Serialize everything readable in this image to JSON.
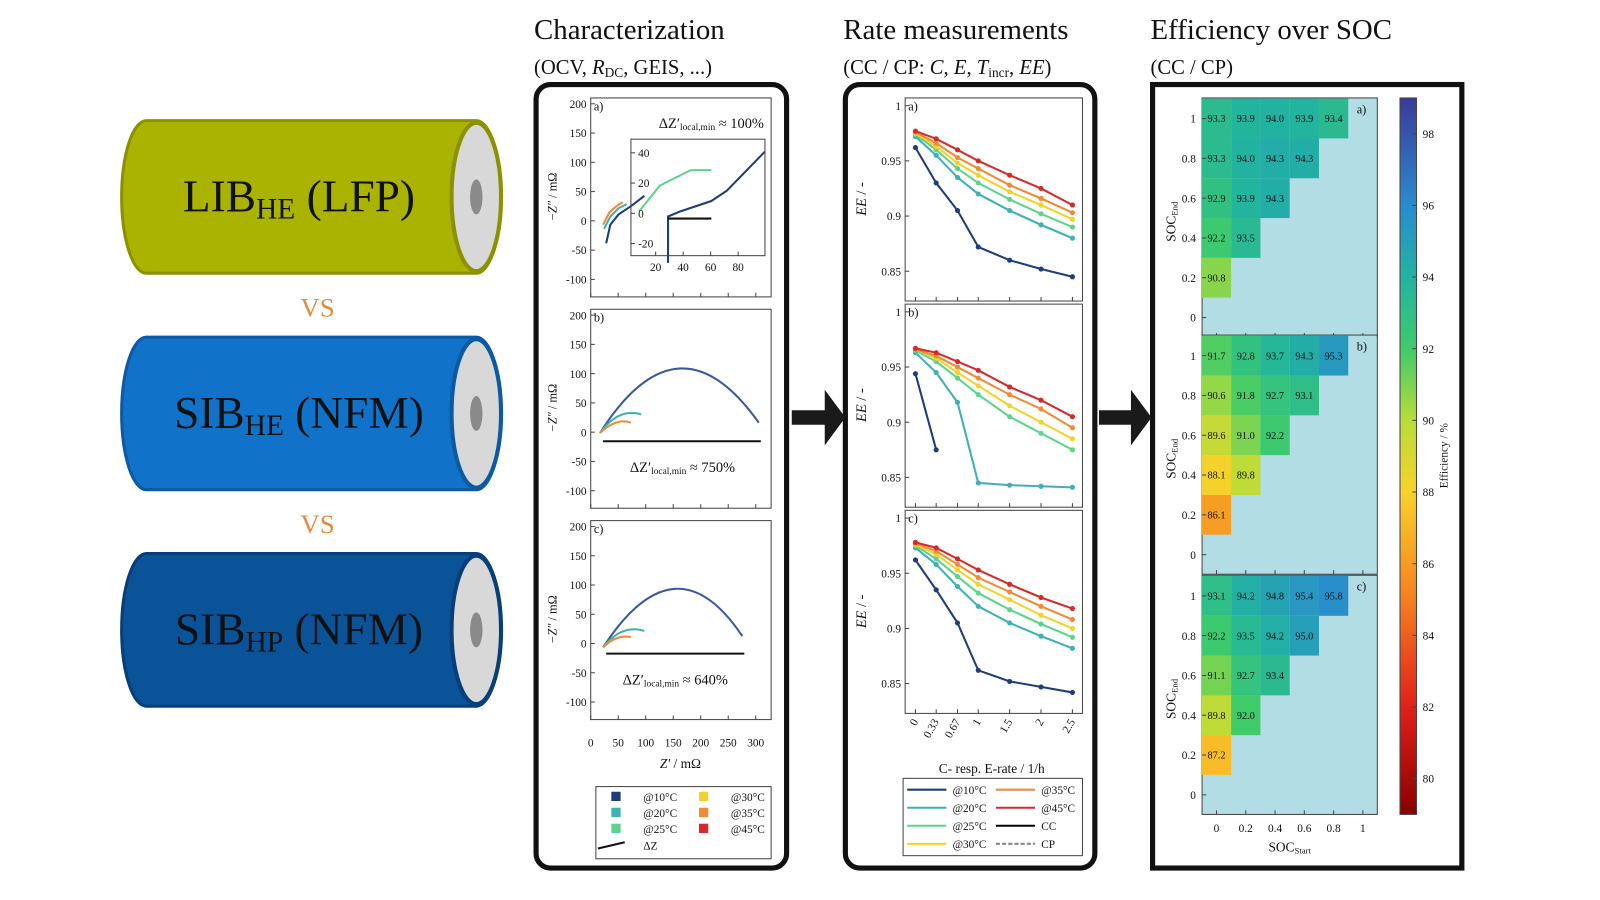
{
  "cells": [
    {
      "color": "#a9b300",
      "edge": "#8a9200",
      "label": [
        {
          "t": "LIB"
        },
        {
          "t": "HE",
          "sub": true
        },
        {
          "t": " (LFP)"
        }
      ]
    },
    {
      "color": "#1172c9",
      "edge": "#0b5aa3",
      "label": [
        {
          "t": "SIB"
        },
        {
          "t": "HE",
          "sub": true
        },
        {
          "t": " (NFM)"
        }
      ]
    },
    {
      "color": "#0b5399",
      "edge": "#083f78",
      "label": [
        {
          "t": "SIB"
        },
        {
          "t": "HP",
          "sub": true
        },
        {
          "t": " (NFM)"
        }
      ]
    }
  ],
  "vs": [
    "VS",
    "VS"
  ],
  "characterization": {
    "title": "Characterization",
    "subtitle": [
      {
        "t": "(OCV, "
      },
      {
        "t": "R",
        "i": true
      },
      {
        "t": "DC",
        "sub": true
      },
      {
        "t": ", GEIS, ...)"
      }
    ],
    "ylabel": [
      {
        "t": "−Z″",
        "i": true
      },
      {
        "t": " / mΩ"
      }
    ],
    "xlabel": [
      {
        "t": "Z′",
        "i": true
      },
      {
        "t": " / mΩ"
      }
    ],
    "xlim": [
      0,
      328
    ],
    "ylim": [
      -130,
      210
    ],
    "xticks": [
      0,
      50,
      100,
      150,
      200,
      250,
      300
    ],
    "yticks": [
      200,
      150,
      100,
      50,
      0,
      -50,
      -100
    ],
    "panels": [
      {
        "label": "a)",
        "annotation": [
          {
            "t": "ΔZ′"
          },
          {
            "t": "local,min",
            "sub": true
          },
          {
            "t": " ≈ 100%"
          }
        ]
      },
      {
        "label": "b)",
        "annotation": [
          {
            "t": "ΔZ′"
          },
          {
            "t": "local,min",
            "sub": true
          },
          {
            "t": " ≈ 750%"
          }
        ]
      },
      {
        "label": "c)",
        "annotation": [
          {
            "t": "ΔZ′"
          },
          {
            "t": "local,min",
            "sub": true
          },
          {
            "t": " ≈ 640%"
          }
        ]
      }
    ],
    "inset": {
      "xlim": [
        2,
        99.5
      ],
      "ylim": [
        -28,
        49
      ],
      "xticks": [
        20,
        40,
        60,
        80
      ],
      "yticks": [
        40,
        20,
        0,
        -20
      ]
    },
    "legend": [
      {
        "name": "@10°C",
        "color": "#1f3d7a"
      },
      {
        "name": "@20°C",
        "color": "#3fb0b8"
      },
      {
        "name": "@25°C",
        "color": "#5fd38d"
      },
      {
        "name": "@30°C",
        "color": "#f3d22a"
      },
      {
        "name": "@35°C",
        "color": "#f08a35"
      },
      {
        "name": "@45°C",
        "color": "#d62a2a"
      },
      {
        "name": "ΔZ",
        "color": "#111"
      }
    ]
  },
  "rate": {
    "title": "Rate measurements",
    "subtitle": [
      {
        "t": "(CC / CP: "
      },
      {
        "t": "C",
        "i": true
      },
      {
        "t": ", "
      },
      {
        "t": "E",
        "i": true
      },
      {
        "t": ", "
      },
      {
        "t": "T",
        "i": true
      },
      {
        "t": "incr",
        "sub": true
      },
      {
        "t": ", "
      },
      {
        "t": "EE",
        "i": true
      },
      {
        "t": ")"
      }
    ],
    "ylabel": [
      {
        "t": "EE",
        "i": true
      },
      {
        "t": " / -"
      }
    ],
    "xlabel": "C- resp. E-rate / 1/h",
    "xlim": [
      -0.164,
      2.66
    ],
    "ylim": [
      0.823,
      1.007
    ],
    "x": [
      0,
      0.33,
      0.67,
      1,
      1.5,
      2,
      2.5
    ],
    "xticks": [
      0,
      0.33,
      0.67,
      1,
      1.5,
      2,
      2.5
    ],
    "yticks": [
      1,
      0.95,
      0.9,
      0.85
    ],
    "series": [
      {
        "name": "@10°C",
        "color": "#1f3d7a"
      },
      {
        "name": "@20°C",
        "color": "#3fb0b8"
      },
      {
        "name": "@25°C",
        "color": "#5fd38d"
      },
      {
        "name": "@30°C",
        "color": "#f3d22a"
      },
      {
        "name": "@35°C",
        "color": "#f08a35"
      },
      {
        "name": "@45°C",
        "color": "#d62a2a"
      }
    ],
    "legend_extra": [
      {
        "name": "CC",
        "color": "#000000"
      },
      {
        "name": "CP",
        "color": "#888888",
        "dashed": true
      }
    ],
    "panels": [
      {
        "label": "a)",
        "values": [
          [
            0.962,
            0.93,
            0.905,
            0.872,
            0.86,
            0.852,
            0.845
          ],
          [
            0.972,
            0.955,
            0.935,
            0.92,
            0.905,
            0.892,
            0.88
          ],
          [
            0.974,
            0.96,
            0.943,
            0.93,
            0.915,
            0.902,
            0.89
          ],
          [
            0.975,
            0.963,
            0.948,
            0.937,
            0.922,
            0.91,
            0.897
          ],
          [
            0.976,
            0.966,
            0.953,
            0.943,
            0.928,
            0.916,
            0.903
          ],
          [
            0.977,
            0.97,
            0.96,
            0.95,
            0.937,
            0.925,
            0.91
          ]
        ]
      },
      {
        "label": "b)",
        "values": [
          [
            0.944,
            0.875,
            null,
            null,
            null,
            null,
            null
          ],
          [
            0.963,
            0.945,
            0.918,
            0.845,
            0.843,
            0.842,
            0.841
          ],
          [
            0.965,
            0.955,
            0.94,
            0.925,
            0.905,
            0.89,
            0.875
          ],
          [
            0.966,
            0.958,
            0.945,
            0.933,
            0.915,
            0.9,
            0.885
          ],
          [
            0.966,
            0.96,
            0.95,
            0.94,
            0.925,
            0.912,
            0.895
          ],
          [
            0.967,
            0.963,
            0.955,
            0.947,
            0.932,
            0.92,
            0.905
          ]
        ]
      },
      {
        "label": "c)",
        "values": [
          [
            0.962,
            0.935,
            0.905,
            0.862,
            0.852,
            0.847,
            0.842
          ],
          [
            0.973,
            0.958,
            0.938,
            0.92,
            0.905,
            0.893,
            0.882
          ],
          [
            0.975,
            0.963,
            0.947,
            0.932,
            0.917,
            0.904,
            0.892
          ],
          [
            0.976,
            0.967,
            0.953,
            0.94,
            0.926,
            0.912,
            0.9
          ],
          [
            0.977,
            0.97,
            0.958,
            0.946,
            0.933,
            0.92,
            0.908
          ],
          [
            0.978,
            0.973,
            0.963,
            0.953,
            0.94,
            0.928,
            0.918
          ]
        ]
      }
    ]
  },
  "efficiency": {
    "title": "Efficiency over SOC",
    "subtitle": "(CC / CP)",
    "ylabel": [
      {
        "t": "SOC"
      },
      {
        "t": "End",
        "sub": true
      }
    ],
    "xlabel": [
      {
        "t": "SOC"
      },
      {
        "t": "Start",
        "sub": true
      }
    ],
    "xticks": [
      0,
      0.2,
      0.4,
      0.6,
      0.8,
      1
    ],
    "yticks": [
      1,
      0.8,
      0.6,
      0.4,
      0.2,
      0
    ],
    "empty_color": "#b3dde4",
    "clim": [
      79,
      99
    ],
    "cticks": [
      98,
      96,
      94,
      92,
      90,
      88,
      86,
      84,
      82,
      80
    ],
    "clabel": "Efficiency / %",
    "colormap": [
      [
        79,
        "#8b0000"
      ],
      [
        82,
        "#e0201a"
      ],
      [
        85,
        "#f57f20"
      ],
      [
        88,
        "#f8d22a"
      ],
      [
        90,
        "#b8dc3a"
      ],
      [
        92,
        "#3fcb6a"
      ],
      [
        94,
        "#22b3a0"
      ],
      [
        96,
        "#2a8bd0"
      ],
      [
        99,
        "#3a3a9a"
      ]
    ],
    "panels": [
      {
        "label": "a)",
        "rows": [
          [
            93.3,
            93.9,
            94.0,
            93.9,
            93.4
          ],
          [
            93.3,
            94.0,
            94.3,
            94.3
          ],
          [
            92.9,
            93.9,
            94.3
          ],
          [
            92.2,
            93.5
          ],
          [
            90.8
          ]
        ],
        "row_labels": [
          [
            "93.3",
            "93.9",
            "94.0",
            "93.9",
            "93.4"
          ],
          [
            "93.3",
            "94.0",
            "94.3",
            "94.3"
          ],
          [
            "92.9",
            "93.9",
            "94.3"
          ],
          [
            "92.2",
            "93.5"
          ],
          [
            "90.8"
          ]
        ]
      },
      {
        "label": "b)",
        "rows": [
          [
            91.7,
            92.8,
            93.7,
            94.3,
            95.3
          ],
          [
            90.6,
            91.8,
            92.7,
            93.1
          ],
          [
            89.6,
            91.0,
            92.2
          ],
          [
            88.1,
            89.8
          ],
          [
            86.1
          ]
        ],
        "row_labels": [
          [
            "91.7",
            "92.8",
            "93.7",
            "94.3",
            "95.3"
          ],
          [
            "90.6",
            "91.8",
            "92.7",
            "93.1"
          ],
          [
            "89.6",
            "91.0",
            "92.2"
          ],
          [
            "88.1",
            "89.8"
          ],
          [
            "86.1"
          ]
        ]
      },
      {
        "label": "c)",
        "rows": [
          [
            93.1,
            94.2,
            94.8,
            95.4,
            95.8
          ],
          [
            92.2,
            93.5,
            94.2,
            95.0
          ],
          [
            91.1,
            92.7,
            93.4
          ],
          [
            89.8,
            92.0
          ],
          [
            87.2
          ]
        ],
        "row_labels": [
          [
            "93.1",
            "94.2",
            "94.8",
            "95.4",
            "95.8"
          ],
          [
            "92.2",
            "93.5",
            "94.2",
            "95.0"
          ],
          [
            "91.1",
            "92.7",
            "93.4"
          ],
          [
            "89.8",
            "92.0"
          ],
          [
            "87.2"
          ]
        ]
      }
    ]
  }
}
